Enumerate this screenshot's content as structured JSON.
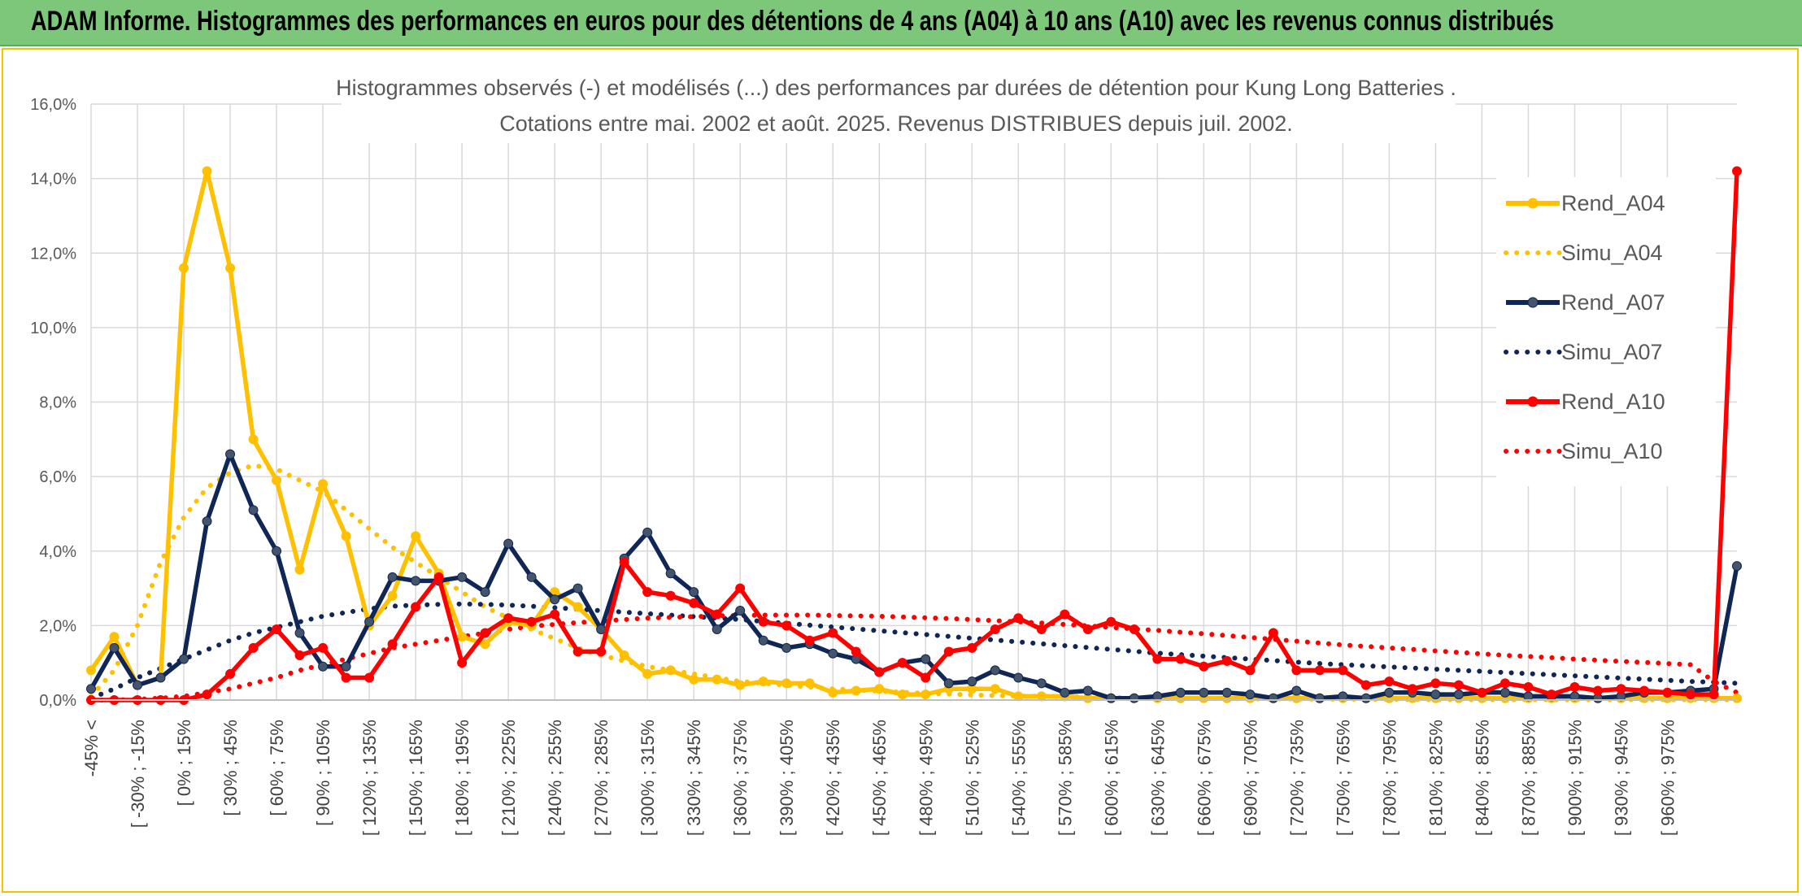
{
  "banner": {
    "title": "ADAM Informe. Histogrammes des performances en euros pour des détentions de 4 ans (A04) à 10 ans (A10) avec les revenus connus distribués"
  },
  "colors": {
    "a04": "#ffc000",
    "a07": "#0f2656",
    "a10": "#ff0000",
    "banner": "#7dc77b",
    "frame": "#f0c400"
  },
  "chart_data": {
    "type": "line",
    "title": "Histogrammes observés (-) et modélisés (...) des performances par durées de détention pour Kung Long Batteries .",
    "subtitle": "Cotations entre mai. 2002 et août. 2025. Revenus DISTRIBUES depuis juil. 2002.",
    "ylim": [
      0,
      16
    ],
    "y_unit": "%",
    "yticks": [
      "0,0%",
      "2,0%",
      "4,0%",
      "6,0%",
      "8,0%",
      "10,0%",
      "12,0%",
      "14,0%",
      "16,0%"
    ],
    "grid": true,
    "legend_position": "right",
    "x_labels": [
      "-45% <",
      "[ -30% ; -15%",
      "[ 0% ; 15%",
      "[ 30% ; 45%",
      "[ 60% ; 75%",
      "[ 90% ; 105%",
      "[ 120% ; 135%",
      "[ 150% ; 165%",
      "[ 180% ; 195%",
      "[ 210% ; 225%",
      "[ 240% ; 255%",
      "[ 270% ; 285%",
      "[ 300% ; 315%",
      "[ 330% ; 345%",
      "[ 360% ; 375%",
      "[ 390% ; 405%",
      "[ 420% ; 435%",
      "[ 450% ; 465%",
      "[ 480% ; 495%",
      "[ 510% ; 525%",
      "[ 540% ; 555%",
      "[ 570% ; 585%",
      "[ 600% ; 615%",
      "[ 630% ; 645%",
      "[ 660% ; 675%",
      "[ 690% ; 705%",
      "[ 720% ; 735%",
      "[ 750% ; 765%",
      "[ 780% ; 795%",
      "[ 810% ; 825%",
      "[ 840% ; 855%",
      "[ 870% ; 885%",
      "[ 900% ; 915%",
      "[ 930% ; 945%",
      "[ 960% ; 975%"
    ],
    "series": [
      {
        "name": "Rend_A04",
        "style": "solid",
        "color": "#ffc000",
        "values": [
          0.8,
          1.7,
          0.4,
          0.6,
          11.6,
          14.2,
          11.6,
          7.0,
          5.9,
          3.5,
          5.8,
          4.4,
          2.0,
          2.8,
          4.4,
          3.4,
          1.7,
          1.5,
          2.1,
          2.0,
          2.9,
          2.5,
          1.9,
          1.2,
          0.7,
          0.8,
          0.55,
          0.55,
          0.4,
          0.5,
          0.45,
          0.45,
          0.2,
          0.25,
          0.3,
          0.15,
          0.15,
          0.3,
          0.3,
          0.3,
          0.1,
          0.1,
          0.1,
          0.05,
          0.05,
          0.05,
          0.05,
          0.05,
          0.05,
          0.05,
          0.05,
          0.05,
          0.05,
          0.05,
          0.05,
          0.05,
          0.05,
          0.05,
          0.05,
          0.05,
          0.05,
          0.05,
          0.05,
          0.05,
          0.05,
          0.05,
          0.05,
          0.05,
          0.05,
          0.05,
          0.05,
          0.05
        ]
      },
      {
        "name": "Simu_A04",
        "style": "dotted",
        "color": "#ffc000",
        "values": [
          0.1,
          0.8,
          2.0,
          3.7,
          4.9,
          5.7,
          6.1,
          6.3,
          6.2,
          5.9,
          5.6,
          5.1,
          4.6,
          4.1,
          3.7,
          3.3,
          2.9,
          2.5,
          2.2,
          1.9,
          1.65,
          1.4,
          1.2,
          1.05,
          0.9,
          0.8,
          0.7,
          0.6,
          0.5,
          0.45,
          0.4,
          0.35,
          0.3,
          0.27,
          0.24,
          0.21,
          0.18,
          0.16,
          0.14,
          0.12,
          0.11,
          0.1,
          0.09,
          0.08,
          0.07,
          0.06,
          0.05,
          0.05,
          0.04,
          0.04,
          0.03,
          0.03,
          0.03,
          0.02,
          0.02,
          0.02,
          0.02,
          0.02,
          0.01,
          0.01,
          0.01,
          0.01,
          0.01,
          0.01,
          0.01,
          0.01,
          0.01,
          0.01,
          0.01,
          0.01,
          0.01,
          0.01
        ]
      },
      {
        "name": "Rend_A07",
        "style": "solid",
        "color": "#0f2656",
        "values": [
          0.3,
          1.4,
          0.4,
          0.6,
          1.1,
          4.8,
          6.6,
          5.1,
          4.0,
          1.8,
          0.9,
          0.9,
          2.1,
          3.3,
          3.2,
          3.2,
          3.3,
          2.9,
          4.2,
          3.3,
          2.7,
          3.0,
          1.9,
          3.8,
          4.5,
          3.4,
          2.9,
          1.9,
          2.4,
          1.6,
          1.4,
          1.5,
          1.25,
          1.1,
          0.75,
          1.0,
          1.1,
          0.45,
          0.5,
          0.8,
          0.6,
          0.45,
          0.2,
          0.25,
          0.05,
          0.05,
          0.1,
          0.2,
          0.2,
          0.2,
          0.15,
          0.05,
          0.25,
          0.05,
          0.1,
          0.05,
          0.2,
          0.2,
          0.15,
          0.15,
          0.2,
          0.2,
          0.1,
          0.1,
          0.1,
          0.05,
          0.1,
          0.2,
          0.2,
          0.25,
          0.3,
          3.6
        ]
      },
      {
        "name": "Simu_A07",
        "style": "dotted",
        "color": "#0f2656",
        "values": [
          0.05,
          0.3,
          0.6,
          0.85,
          1.1,
          1.35,
          1.6,
          1.8,
          1.95,
          2.1,
          2.25,
          2.35,
          2.45,
          2.52,
          2.55,
          2.57,
          2.58,
          2.57,
          2.55,
          2.52,
          2.48,
          2.44,
          2.4,
          2.36,
          2.32,
          2.28,
          2.24,
          2.2,
          2.16,
          2.11,
          2.06,
          2.01,
          1.96,
          1.91,
          1.86,
          1.81,
          1.76,
          1.71,
          1.66,
          1.61,
          1.56,
          1.51,
          1.46,
          1.41,
          1.36,
          1.31,
          1.26,
          1.22,
          1.18,
          1.14,
          1.1,
          1.06,
          1.02,
          0.98,
          0.95,
          0.92,
          0.89,
          0.86,
          0.83,
          0.8,
          0.77,
          0.74,
          0.71,
          0.68,
          0.65,
          0.62,
          0.59,
          0.56,
          0.53,
          0.5,
          0.48,
          0.45
        ]
      },
      {
        "name": "Rend_A10",
        "style": "solid",
        "color": "#ff0000",
        "values": [
          0.0,
          0.0,
          0.0,
          0.0,
          0.0,
          0.15,
          0.7,
          1.4,
          1.9,
          1.2,
          1.4,
          0.6,
          0.6,
          1.5,
          2.5,
          3.3,
          1.0,
          1.8,
          2.2,
          2.1,
          2.3,
          1.3,
          1.3,
          3.7,
          2.9,
          2.8,
          2.6,
          2.3,
          3.0,
          2.1,
          2.0,
          1.6,
          1.8,
          1.3,
          0.75,
          1.0,
          0.6,
          1.3,
          1.4,
          1.9,
          2.2,
          1.9,
          2.3,
          1.9,
          2.1,
          1.9,
          1.1,
          1.1,
          0.9,
          1.05,
          0.8,
          1.8,
          0.8,
          0.8,
          0.8,
          0.4,
          0.5,
          0.3,
          0.45,
          0.4,
          0.2,
          0.45,
          0.35,
          0.15,
          0.35,
          0.25,
          0.3,
          0.25,
          0.2,
          0.15,
          0.15,
          14.2
        ]
      },
      {
        "name": "Simu_A10",
        "style": "dotted",
        "color": "#ff0000",
        "values": [
          0.0,
          0.0,
          0.02,
          0.05,
          0.1,
          0.2,
          0.3,
          0.45,
          0.6,
          0.8,
          0.95,
          1.1,
          1.25,
          1.4,
          1.5,
          1.6,
          1.7,
          1.8,
          1.9,
          1.98,
          2.03,
          2.08,
          2.12,
          2.16,
          2.2,
          2.22,
          2.24,
          2.26,
          2.27,
          2.28,
          2.28,
          2.28,
          2.27,
          2.26,
          2.25,
          2.23,
          2.21,
          2.19,
          2.16,
          2.13,
          2.1,
          2.07,
          2.03,
          1.99,
          1.95,
          1.91,
          1.87,
          1.82,
          1.78,
          1.73,
          1.68,
          1.63,
          1.58,
          1.53,
          1.48,
          1.44,
          1.4,
          1.36,
          1.32,
          1.28,
          1.24,
          1.2,
          1.17,
          1.14,
          1.1,
          1.07,
          1.04,
          1.01,
          0.98,
          0.95,
          0.5,
          0.2
        ]
      }
    ]
  }
}
